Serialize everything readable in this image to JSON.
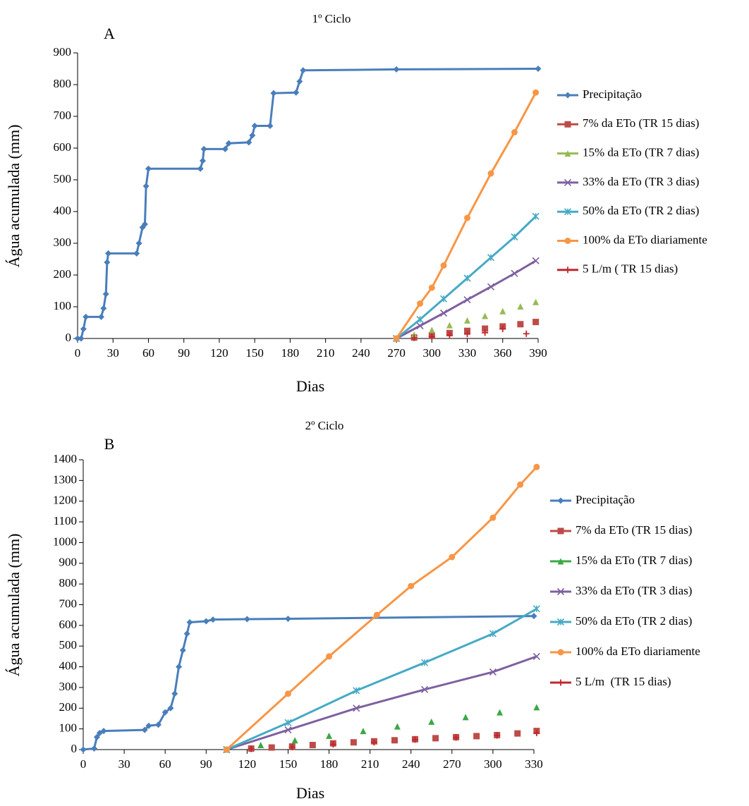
{
  "chart_data": [
    {
      "type": "line",
      "title": "1º Ciclo",
      "panel": "A",
      "x_label": "Dias",
      "y_label": "Água acumulada (mm)",
      "xlim": [
        0,
        390
      ],
      "xticks": [
        0,
        30,
        60,
        90,
        120,
        150,
        180,
        210,
        240,
        270,
        300,
        330,
        360,
        390
      ],
      "ylim": [
        0,
        900
      ],
      "yticks": [
        0,
        100,
        200,
        300,
        400,
        500,
        600,
        700,
        800,
        900
      ],
      "series": [
        {
          "name": "Precipitação",
          "color": "#4a7ebb",
          "marker": "diamond",
          "line": true,
          "x": [
            0,
            3,
            5,
            7,
            20,
            22,
            24,
            25,
            26,
            50,
            52,
            55,
            57,
            58,
            60,
            104,
            106,
            107,
            125,
            128,
            145,
            148,
            150,
            163,
            166,
            185,
            188,
            191,
            270,
            390
          ],
          "values": [
            0,
            0,
            30,
            68,
            68,
            95,
            140,
            240,
            268,
            268,
            300,
            350,
            360,
            480,
            535,
            535,
            560,
            597,
            597,
            615,
            618,
            640,
            670,
            670,
            773,
            775,
            810,
            845,
            848,
            850
          ]
        },
        {
          "name": "7% da ETo (TR 15 dias)",
          "color": "#be4b48",
          "marker": "square",
          "line": false,
          "x": [
            285,
            300,
            315,
            330,
            345,
            360,
            375,
            388
          ],
          "values": [
            3,
            10,
            17,
            24,
            31,
            38,
            45,
            52
          ]
        },
        {
          "name": "15% da ETo (TR 7 dias)",
          "color": "#98b954",
          "marker": "triangle",
          "line": false,
          "x": [
            270,
            285,
            300,
            315,
            330,
            345,
            360,
            375,
            388
          ],
          "values": [
            0,
            12,
            27,
            42,
            57,
            71,
            86,
            101,
            115
          ]
        },
        {
          "name": "33% da ETo (TR 3 dias)",
          "color": "#7d60a0",
          "marker": "x",
          "line": true,
          "x": [
            270,
            290,
            310,
            330,
            350,
            370,
            388
          ],
          "values": [
            0,
            40,
            80,
            122,
            163,
            205,
            245
          ]
        },
        {
          "name": "50% da ETo (TR 2 dias)",
          "color": "#46aac5",
          "marker": "star",
          "line": true,
          "x": [
            270,
            290,
            310,
            330,
            350,
            370,
            388
          ],
          "values": [
            0,
            60,
            125,
            190,
            255,
            320,
            385
          ]
        },
        {
          "name": "100% da ETo diariamente",
          "color": "#f79646",
          "marker": "circle",
          "line": true,
          "x": [
            270,
            290,
            300,
            310,
            330,
            350,
            370,
            388
          ],
          "values": [
            0,
            110,
            160,
            230,
            380,
            520,
            650,
            775
          ]
        },
        {
          "name": "5 L/m ( TR 15 dias)",
          "color": "#c0272d",
          "marker": "plus",
          "line": false,
          "x": [
            285,
            300,
            315,
            330,
            345,
            360,
            380
          ],
          "values": [
            2,
            6,
            10,
            14,
            18,
            30,
            15
          ]
        }
      ]
    },
    {
      "type": "line",
      "title": "2º Ciclo",
      "panel": "B",
      "x_label": "Dias",
      "y_label": "Água acumulada (mm)",
      "xlim": [
        0,
        330
      ],
      "xticks": [
        0,
        30,
        60,
        90,
        120,
        150,
        180,
        210,
        240,
        270,
        300,
        330
      ],
      "ylim": [
        0,
        1400
      ],
      "yticks": [
        0,
        100,
        200,
        300,
        400,
        500,
        600,
        700,
        800,
        900,
        1000,
        1100,
        1200,
        1300,
        1400
      ],
      "series": [
        {
          "name": "Precipitação",
          "color": "#4a7ebb",
          "marker": "diamond",
          "line": true,
          "x": [
            0,
            8,
            10,
            12,
            15,
            45,
            48,
            55,
            60,
            64,
            67,
            70,
            73,
            76,
            78,
            90,
            95,
            120,
            150,
            330
          ],
          "values": [
            0,
            5,
            60,
            80,
            90,
            95,
            115,
            120,
            180,
            200,
            270,
            400,
            480,
            560,
            615,
            620,
            628,
            630,
            632,
            645
          ]
        },
        {
          "name": "7% da ETo (TR 15 dias)",
          "color": "#be4b48",
          "marker": "square",
          "line": false,
          "x": [
            123,
            138,
            153,
            168,
            183,
            198,
            213,
            228,
            243,
            258,
            273,
            288,
            303,
            318,
            332
          ],
          "values": [
            5,
            10,
            15,
            22,
            30,
            35,
            40,
            45,
            50,
            55,
            60,
            65,
            70,
            78,
            90
          ]
        },
        {
          "name": "15% da ETo (TR 7 dias)",
          "color": "#3aa845",
          "marker": "triangle",
          "line": false,
          "x": [
            105,
            130,
            155,
            180,
            205,
            230,
            255,
            280,
            305,
            332
          ],
          "values": [
            0,
            22,
            45,
            67,
            90,
            112,
            135,
            157,
            180,
            205
          ]
        },
        {
          "name": "33% da ETo (TR 3 dias)",
          "color": "#7d60a0",
          "marker": "x",
          "line": true,
          "x": [
            105,
            150,
            200,
            250,
            300,
            332
          ],
          "values": [
            0,
            95,
            200,
            290,
            375,
            450
          ]
        },
        {
          "name": "50% da ETo (TR 2 dias)",
          "color": "#46aac5",
          "marker": "star",
          "line": true,
          "x": [
            105,
            150,
            200,
            250,
            300,
            332
          ],
          "values": [
            0,
            130,
            285,
            420,
            560,
            680
          ]
        },
        {
          "name": "100% da ETo diariamente",
          "color": "#f79646",
          "marker": "circle",
          "line": true,
          "x": [
            105,
            150,
            180,
            215,
            240,
            270,
            300,
            320,
            332
          ],
          "values": [
            0,
            270,
            450,
            650,
            790,
            930,
            1120,
            1280,
            1365
          ]
        },
        {
          "name": "5 L/m  (TR 15 dias)",
          "color": "#c0272d",
          "marker": "plus",
          "line": false,
          "x": [
            123,
            153,
            183,
            213,
            243,
            273,
            303,
            332
          ],
          "values": [
            3,
            12,
            25,
            35,
            48,
            58,
            68,
            80
          ]
        }
      ]
    }
  ]
}
